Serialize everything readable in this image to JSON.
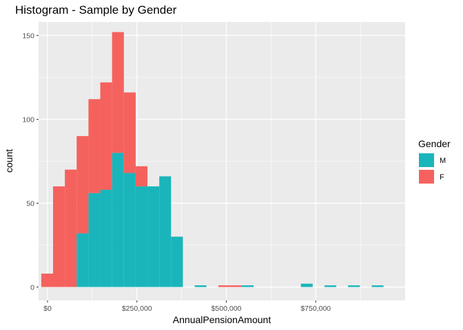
{
  "chart_data": {
    "type": "bar",
    "title": "Histogram - Sample by Gender",
    "xlabel": "AnnualPensionAmount",
    "ylabel": "count",
    "xlim": [
      -25000,
      1000000
    ],
    "ylim": [
      -8,
      158
    ],
    "x_ticks": [
      {
        "value": 0,
        "label": "$0"
      },
      {
        "value": 250000,
        "label": "$250,000"
      },
      {
        "value": 500000,
        "label": "$500,000"
      },
      {
        "value": 750000,
        "label": "$750,000"
      }
    ],
    "y_ticks": [
      {
        "value": 0,
        "label": "0"
      },
      {
        "value": 50,
        "label": "50"
      },
      {
        "value": 100,
        "label": "100"
      },
      {
        "value": 150,
        "label": "150"
      }
    ],
    "grid": true,
    "stacked": true,
    "legend": {
      "title": "Gender",
      "position": "right",
      "entries": [
        {
          "label": "M",
          "color": "#1ab5bb"
        },
        {
          "label": "F",
          "color": "#f5625e"
        }
      ]
    },
    "bin_width": 33000,
    "bin_centers": [
      -1000,
      32000,
      65000,
      98000,
      131000,
      164000,
      197000,
      230000,
      263000,
      296000,
      329000,
      362000,
      395000,
      428000,
      461000,
      494000,
      527000,
      560000,
      593000,
      626000,
      659000,
      692000,
      725000,
      758000,
      791000,
      824000,
      857000,
      890000,
      923000
    ],
    "series": [
      {
        "name": "M",
        "color": "#1ab5bb",
        "values": [
          0,
          0,
          0,
          32,
          56,
          58,
          80,
          68,
          60,
          60,
          66,
          30,
          0,
          1,
          0,
          0,
          0,
          1,
          0,
          0,
          0,
          0,
          2,
          0,
          1,
          0,
          1,
          0,
          1
        ]
      },
      {
        "name": "F",
        "color": "#f5625e",
        "values": [
          8,
          60,
          70,
          58,
          56,
          64,
          72,
          48,
          12,
          0,
          0,
          0,
          0,
          0,
          0,
          1,
          1,
          0,
          0,
          0,
          0,
          0,
          0,
          0,
          0,
          0,
          0,
          0,
          0
        ]
      }
    ]
  }
}
